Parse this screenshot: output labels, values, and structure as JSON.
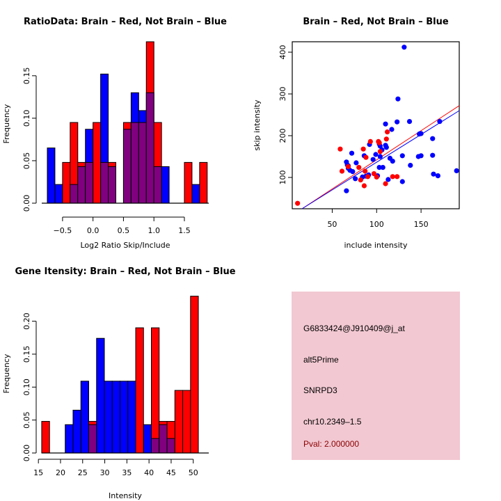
{
  "colors": {
    "brain": "#ff0000",
    "not_brain": "#0000ff",
    "overlap": "#800080",
    "info_bg": "#f2c8d2",
    "pval": "#8b0000"
  },
  "chart_data": [
    {
      "id": "ratio",
      "type": "bar",
      "title": "RatioData: Brain – Red, Not Brain – Blue",
      "xlabel": "Log2 Ratio Skip/Include",
      "ylabel": "Frequency",
      "xlim": [
        -0.75,
        1.9
      ],
      "ylim": [
        0,
        0.19
      ],
      "xticks": [
        -0.5,
        0.0,
        0.5,
        1.0,
        1.5
      ],
      "xtick_labels": [
        "−0.5",
        "0.0",
        "0.5",
        "1.0",
        "1.5"
      ],
      "yticks": [
        0.0,
        0.05,
        0.1,
        0.15
      ],
      "ytick_labels": [
        "0.00",
        "0.05",
        "0.10",
        "0.15"
      ],
      "bin_start": -0.75,
      "bin_width": 0.125,
      "series": [
        {
          "name": "Not Brain",
          "color": "blue",
          "values": [
            0.065,
            0.022,
            0,
            0.022,
            0.043,
            0.087,
            0,
            0.152,
            0.043,
            0,
            0.087,
            0.13,
            0.109,
            0.13,
            0.043,
            0.043,
            0,
            0,
            0,
            0.022,
            0
          ]
        },
        {
          "name": "Brain",
          "color": "red",
          "values": [
            0,
            0,
            0.048,
            0.095,
            0.048,
            0.048,
            0.095,
            0.048,
            0.048,
            0,
            0.095,
            0.095,
            0.095,
            0.19,
            0.095,
            0,
            0,
            0,
            0.048,
            0,
            0.048
          ]
        }
      ]
    },
    {
      "id": "scatter",
      "type": "scatter",
      "title": "Brain – Red, Not Brain – Blue",
      "xlabel": "include intensity",
      "ylabel": "skip intensity",
      "xlim": [
        5,
        193
      ],
      "ylim": [
        25,
        425
      ],
      "xticks": [
        50,
        100,
        150
      ],
      "yticks": [
        100,
        200,
        300,
        400
      ],
      "series": [
        {
          "name": "Brain",
          "color": "red",
          "points": [
            [
              11,
              38
            ],
            [
              59,
              168
            ],
            [
              61,
              115
            ],
            [
              68,
              126
            ],
            [
              80,
              124
            ],
            [
              82,
              94
            ],
            [
              85,
              168
            ],
            [
              86,
              80
            ],
            [
              87,
              115
            ],
            [
              88,
              148
            ],
            [
              90,
              102
            ],
            [
              93,
              186
            ],
            [
              97,
              109
            ],
            [
              100,
              101
            ],
            [
              102,
              186
            ],
            [
              103,
              183
            ],
            [
              104,
              162
            ],
            [
              110,
              85
            ],
            [
              111,
              192
            ],
            [
              112,
              209
            ],
            [
              118,
              102
            ],
            [
              123,
              102
            ]
          ],
          "fit": [
            [
              16,
              25
            ],
            [
              193,
              272
            ]
          ]
        },
        {
          "name": "Not Brain",
          "color": "blue",
          "points": [
            [
              66,
              68
            ],
            [
              66,
              137
            ],
            [
              67,
              130
            ],
            [
              68,
              122
            ],
            [
              68,
              128
            ],
            [
              70,
              117
            ],
            [
              72,
              158
            ],
            [
              73,
              114
            ],
            [
              76,
              97
            ],
            [
              77,
              135
            ],
            [
              84,
              101
            ],
            [
              86,
              152
            ],
            [
              88,
              103
            ],
            [
              91,
              106
            ],
            [
              92,
              179
            ],
            [
              96,
              143
            ],
            [
              99,
              155
            ],
            [
              101,
              104
            ],
            [
              103,
              180
            ],
            [
              103,
              124
            ],
            [
              104,
              175
            ],
            [
              104,
              150
            ],
            [
              106,
              166
            ],
            [
              107,
              124
            ],
            [
              110,
              177
            ],
            [
              110,
              228
            ],
            [
              111,
              172
            ],
            [
              113,
              95
            ],
            [
              115,
              146
            ],
            [
              117,
              215
            ],
            [
              118,
              139
            ],
            [
              123,
              233
            ],
            [
              124,
              288
            ],
            [
              129,
              152
            ],
            [
              129,
              90
            ],
            [
              131,
              412
            ],
            [
              137,
              234
            ],
            [
              138,
              129
            ],
            [
              147,
              150
            ],
            [
              148,
              204
            ],
            [
              149,
              205
            ],
            [
              150,
              152
            ],
            [
              150,
              205
            ],
            [
              163,
              153
            ],
            [
              163,
              193
            ],
            [
              164,
              108
            ],
            [
              169,
              104
            ],
            [
              171,
              234
            ],
            [
              190,
              116
            ]
          ],
          "fit": [
            [
              16,
              25
            ],
            [
              193,
              260
            ]
          ]
        }
      ]
    },
    {
      "id": "gene",
      "type": "bar",
      "title": "Gene Itensity: Brain – Red, Not Brain – Blue",
      "xlabel": "Intensity",
      "ylabel": "Frequency",
      "xlim": [
        14.5,
        53.5
      ],
      "ylim": [
        0,
        0.245
      ],
      "xticks": [
        15,
        20,
        25,
        30,
        35,
        40,
        45,
        50
      ],
      "xtick_labels": [
        "15",
        "20",
        "25",
        "30",
        "35",
        "40",
        "45",
        "50"
      ],
      "yticks": [
        0.0,
        0.05,
        0.1,
        0.15,
        0.2
      ],
      "ytick_labels": [
        "0.00",
        "0.05",
        "0.10",
        "0.15",
        "0.20"
      ],
      "bin_start": 15.75,
      "bin_width": 1.77,
      "series": [
        {
          "name": "Not Brain",
          "color": "blue",
          "values": [
            0,
            0,
            0,
            0.043,
            0.065,
            0.109,
            0.043,
            0.174,
            0.109,
            0.109,
            0.109,
            0.109,
            0,
            0.043,
            0.022,
            0.043,
            0.022,
            0,
            0,
            0
          ]
        },
        {
          "name": "Brain",
          "color": "red",
          "values": [
            0.048,
            0,
            0,
            0,
            0,
            0,
            0.048,
            0,
            0,
            0,
            0,
            0,
            0.19,
            0,
            0.19,
            0.048,
            0.048,
            0.095,
            0.095,
            0.238
          ]
        }
      ]
    }
  ],
  "info_panel": {
    "probe_id": "G6833424@J910409@j_at",
    "event_type": "alt5Prime",
    "gene": "SNRPD3",
    "location": "chr10.2349–1.5",
    "pval": "Pval: 2.000000"
  }
}
